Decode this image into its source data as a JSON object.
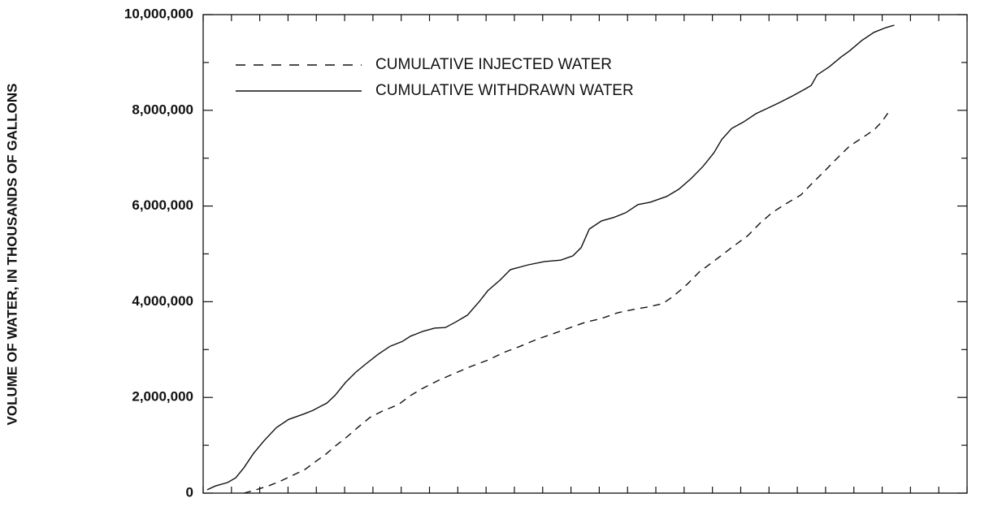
{
  "chart_data": {
    "type": "line",
    "y_label": "VOLUME OF WATER, IN THOUSANDS OF GALLONS",
    "xlim": [
      0,
      27
    ],
    "xtick_marks": [
      0,
      1,
      2,
      3,
      4,
      5,
      6,
      7,
      8,
      9,
      10,
      11,
      12,
      13,
      14,
      15,
      16,
      17,
      18,
      19,
      20,
      21,
      22,
      23,
      24,
      25,
      26,
      27
    ],
    "ylim": [
      0,
      10000000
    ],
    "yticks": [
      0,
      {
        "value": 2000000,
        "label": "2,000,000"
      },
      {
        "value": 4000000,
        "label": "4,000,000"
      },
      {
        "value": 6000000,
        "label": "6,000,000"
      },
      {
        "value": 8000000,
        "label": "8,000,000"
      },
      {
        "value": 10000000,
        "label": "10,000,000"
      }
    ],
    "yminor": [
      1000000,
      3000000,
      5000000,
      7000000,
      9000000
    ],
    "series": [
      {
        "name": "CUMULATIVE INJECTED WATER",
        "color": "#111",
        "dashed": true,
        "x": [
          1.44,
          1.87,
          2.3,
          2.73,
          3.16,
          3.59,
          4.02,
          4.31,
          4.66,
          5.03,
          5.46,
          5.89,
          6.32,
          6.9,
          7.33,
          7.76,
          8.33,
          8.91,
          9.48,
          10.06,
          10.63,
          11.21,
          11.78,
          12.36,
          12.93,
          13.51,
          14.08,
          14.66,
          15.23,
          15.8,
          16.24,
          16.61,
          17.1,
          17.53,
          18.1,
          18.68,
          19.25,
          19.68,
          20.11,
          20.55,
          21.12,
          21.55,
          21.98,
          22.41,
          22.84,
          23.28,
          23.71,
          23.99,
          24.28
        ],
        "values": [
          0,
          70000,
          150000,
          250000,
          370000,
          490000,
          680000,
          800000,
          980000,
          1150000,
          1370000,
          1580000,
          1710000,
          1850000,
          2040000,
          2190000,
          2360000,
          2510000,
          2650000,
          2780000,
          2940000,
          3070000,
          3210000,
          3330000,
          3450000,
          3570000,
          3650000,
          3770000,
          3840000,
          3900000,
          3960000,
          4110000,
          4360000,
          4620000,
          4870000,
          5130000,
          5380000,
          5640000,
          5860000,
          6030000,
          6230000,
          6490000,
          6740000,
          7000000,
          7250000,
          7420000,
          7590000,
          7760000,
          8010000
        ]
      },
      {
        "name": "CUMULATIVE WITHDRAWN WATER",
        "color": "#111",
        "dashed": false,
        "x": [
          0.14,
          0.43,
          0.86,
          1.15,
          1.44,
          1.78,
          2.16,
          2.59,
          3.02,
          3.59,
          3.88,
          4.17,
          4.37,
          4.66,
          5.03,
          5.4,
          5.75,
          6.18,
          6.61,
          7.04,
          7.33,
          7.76,
          8.19,
          8.56,
          8.91,
          9.34,
          9.77,
          10.06,
          10.49,
          10.86,
          11.49,
          12.07,
          12.64,
          13.07,
          13.36,
          13.65,
          14.08,
          14.51,
          14.94,
          15.37,
          15.8,
          16.38,
          16.81,
          17.24,
          17.67,
          18.05,
          18.33,
          18.68,
          19.11,
          19.54,
          19.97,
          20.4,
          20.83,
          21.26,
          21.49,
          21.7,
          22.13,
          22.56,
          22.84,
          23.28,
          23.71,
          24.14,
          24.43
        ],
        "values": [
          70000,
          150000,
          220000,
          320000,
          530000,
          830000,
          1100000,
          1370000,
          1540000,
          1660000,
          1730000,
          1820000,
          1880000,
          2040000,
          2310000,
          2530000,
          2700000,
          2900000,
          3070000,
          3170000,
          3280000,
          3380000,
          3450000,
          3460000,
          3570000,
          3720000,
          4010000,
          4230000,
          4450000,
          4670000,
          4770000,
          4840000,
          4870000,
          4960000,
          5130000,
          5520000,
          5690000,
          5760000,
          5860000,
          6030000,
          6080000,
          6200000,
          6350000,
          6570000,
          6830000,
          7110000,
          7390000,
          7620000,
          7760000,
          7930000,
          8050000,
          8170000,
          8300000,
          8440000,
          8520000,
          8740000,
          8910000,
          9120000,
          9240000,
          9460000,
          9630000,
          9730000,
          9780000
        ]
      }
    ]
  }
}
